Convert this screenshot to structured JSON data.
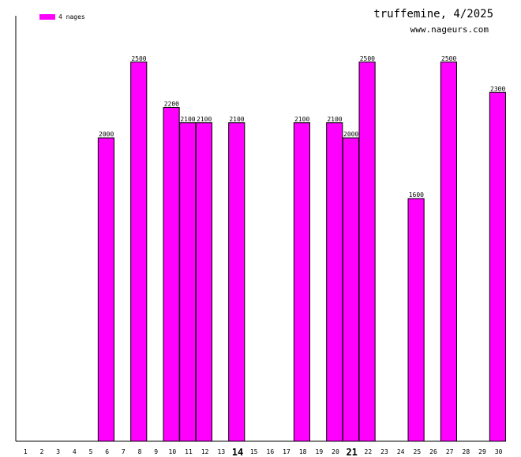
{
  "header": {
    "title": "truffemine, 4/2025",
    "site": "www.nageurs.com"
  },
  "legend": {
    "label": "4 nages",
    "color": "#ff00ff"
  },
  "chart_data": {
    "type": "bar",
    "title": "truffemine, 4/2025",
    "xlabel": "",
    "ylabel": "",
    "ylim": [
      0,
      2800
    ],
    "grid": false,
    "legend_position": "top-left",
    "categories": [
      "1",
      "2",
      "3",
      "4",
      "5",
      "6",
      "7",
      "8",
      "9",
      "10",
      "11",
      "12",
      "13",
      "14",
      "15",
      "16",
      "17",
      "18",
      "19",
      "20",
      "21",
      "22",
      "23",
      "24",
      "25",
      "26",
      "27",
      "28",
      "29",
      "30"
    ],
    "emphasized_categories": [
      "14",
      "21"
    ],
    "series": [
      {
        "name": "4 nages",
        "color": "#ff00ff",
        "values": [
          null,
          null,
          null,
          null,
          null,
          2000,
          null,
          2500,
          null,
          2200,
          2100,
          2100,
          null,
          2100,
          null,
          null,
          null,
          2100,
          null,
          2100,
          2000,
          2500,
          null,
          null,
          1600,
          null,
          2500,
          null,
          null,
          2300
        ]
      }
    ]
  }
}
